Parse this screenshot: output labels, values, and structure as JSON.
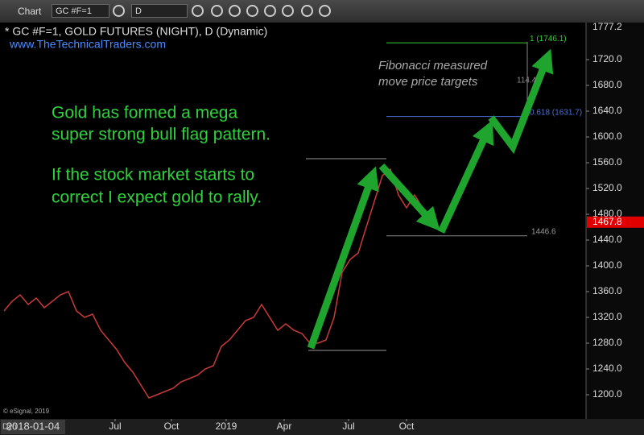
{
  "toolbar": {
    "title": "Chart",
    "symbol": "GC #F=1",
    "interval": "D"
  },
  "chart_data": {
    "type": "line",
    "title": "* GC #F=1, GOLD FUTURES (NIGHT), D (Dynamic)",
    "subtitle": "www.TheTechnicalTraders.com",
    "annotations": [
      "Gold has formed a mega",
      "super strong bull flag pattern.",
      "If the stock market starts to",
      "correct I expect gold to rally.",
      "Fibonacci measured",
      "move price targets",
      "114.4"
    ],
    "copyright": "© eSignal, 2019",
    "scale_mode": "Dyn",
    "color": "#c83a3a",
    "x": [
      0,
      5,
      10,
      15,
      20,
      25,
      30,
      35,
      40,
      45,
      50,
      55,
      60,
      65,
      70,
      75,
      80,
      85,
      90,
      95,
      100,
      105,
      110,
      115,
      120,
      125,
      130,
      135,
      140,
      145,
      150,
      155,
      160,
      165,
      170,
      175,
      180,
      185,
      190,
      195,
      200,
      205,
      210,
      215,
      220,
      225,
      230,
      235,
      240,
      245,
      250,
      255,
      260,
      265
    ],
    "values": [
      1330,
      1345,
      1355,
      1340,
      1350,
      1335,
      1345,
      1355,
      1360,
      1330,
      1320,
      1325,
      1300,
      1285,
      1270,
      1250,
      1235,
      1215,
      1195,
      1200,
      1205,
      1210,
      1220,
      1225,
      1230,
      1240,
      1245,
      1275,
      1285,
      1300,
      1315,
      1320,
      1340,
      1320,
      1300,
      1310,
      1300,
      1295,
      1280,
      1280,
      1285,
      1320,
      1390,
      1410,
      1420,
      1460,
      1500,
      1540,
      1550,
      1510,
      1490,
      1510,
      1490,
      1470
    ],
    "xlim": [
      -2.5,
      361.5
    ],
    "xticks": [
      {
        "value": 18,
        "label": "2018-01-04"
      },
      {
        "value": 69,
        "label": "Jul"
      },
      {
        "value": 104,
        "label": "Oct"
      },
      {
        "value": 138,
        "label": "2019"
      },
      {
        "value": 174,
        "label": "Apr"
      },
      {
        "value": 214,
        "label": "Jul"
      },
      {
        "value": 250,
        "label": "Oct"
      }
    ],
    "ylim": [
      1162.5,
      1777.5
    ],
    "yticks": [
      {
        "value": 1200,
        "label": "1200.0"
      },
      {
        "value": 1240,
        "label": "1240.0"
      },
      {
        "value": 1280,
        "label": "1280.0"
      },
      {
        "value": 1320,
        "label": "1320.0"
      },
      {
        "value": 1360,
        "label": "1360.0"
      },
      {
        "value": 1400,
        "label": "1400.0"
      },
      {
        "value": 1440,
        "label": "1440.0"
      },
      {
        "value": 1480,
        "label": "1480.0"
      },
      {
        "value": 1520,
        "label": "1520.0"
      },
      {
        "value": 1560,
        "label": "1560.0"
      },
      {
        "value": 1600,
        "label": "1600.0"
      },
      {
        "value": 1640,
        "label": "1640.0"
      },
      {
        "value": 1680,
        "label": "1680.0"
      },
      {
        "value": 1720,
        "label": "1720.0"
      }
    ],
    "scale_top": 1777.2,
    "last_price": 1467.8,
    "fib_levels": [
      {
        "value": 1746.1,
        "label": "1 (1746.1)",
        "color": "#33cc33"
      },
      {
        "value": 1631.7,
        "label": "0.618 (1631.7)",
        "color": "#4a6fd4"
      },
      {
        "value": 1446.6,
        "color": "#888888"
      }
    ]
  }
}
